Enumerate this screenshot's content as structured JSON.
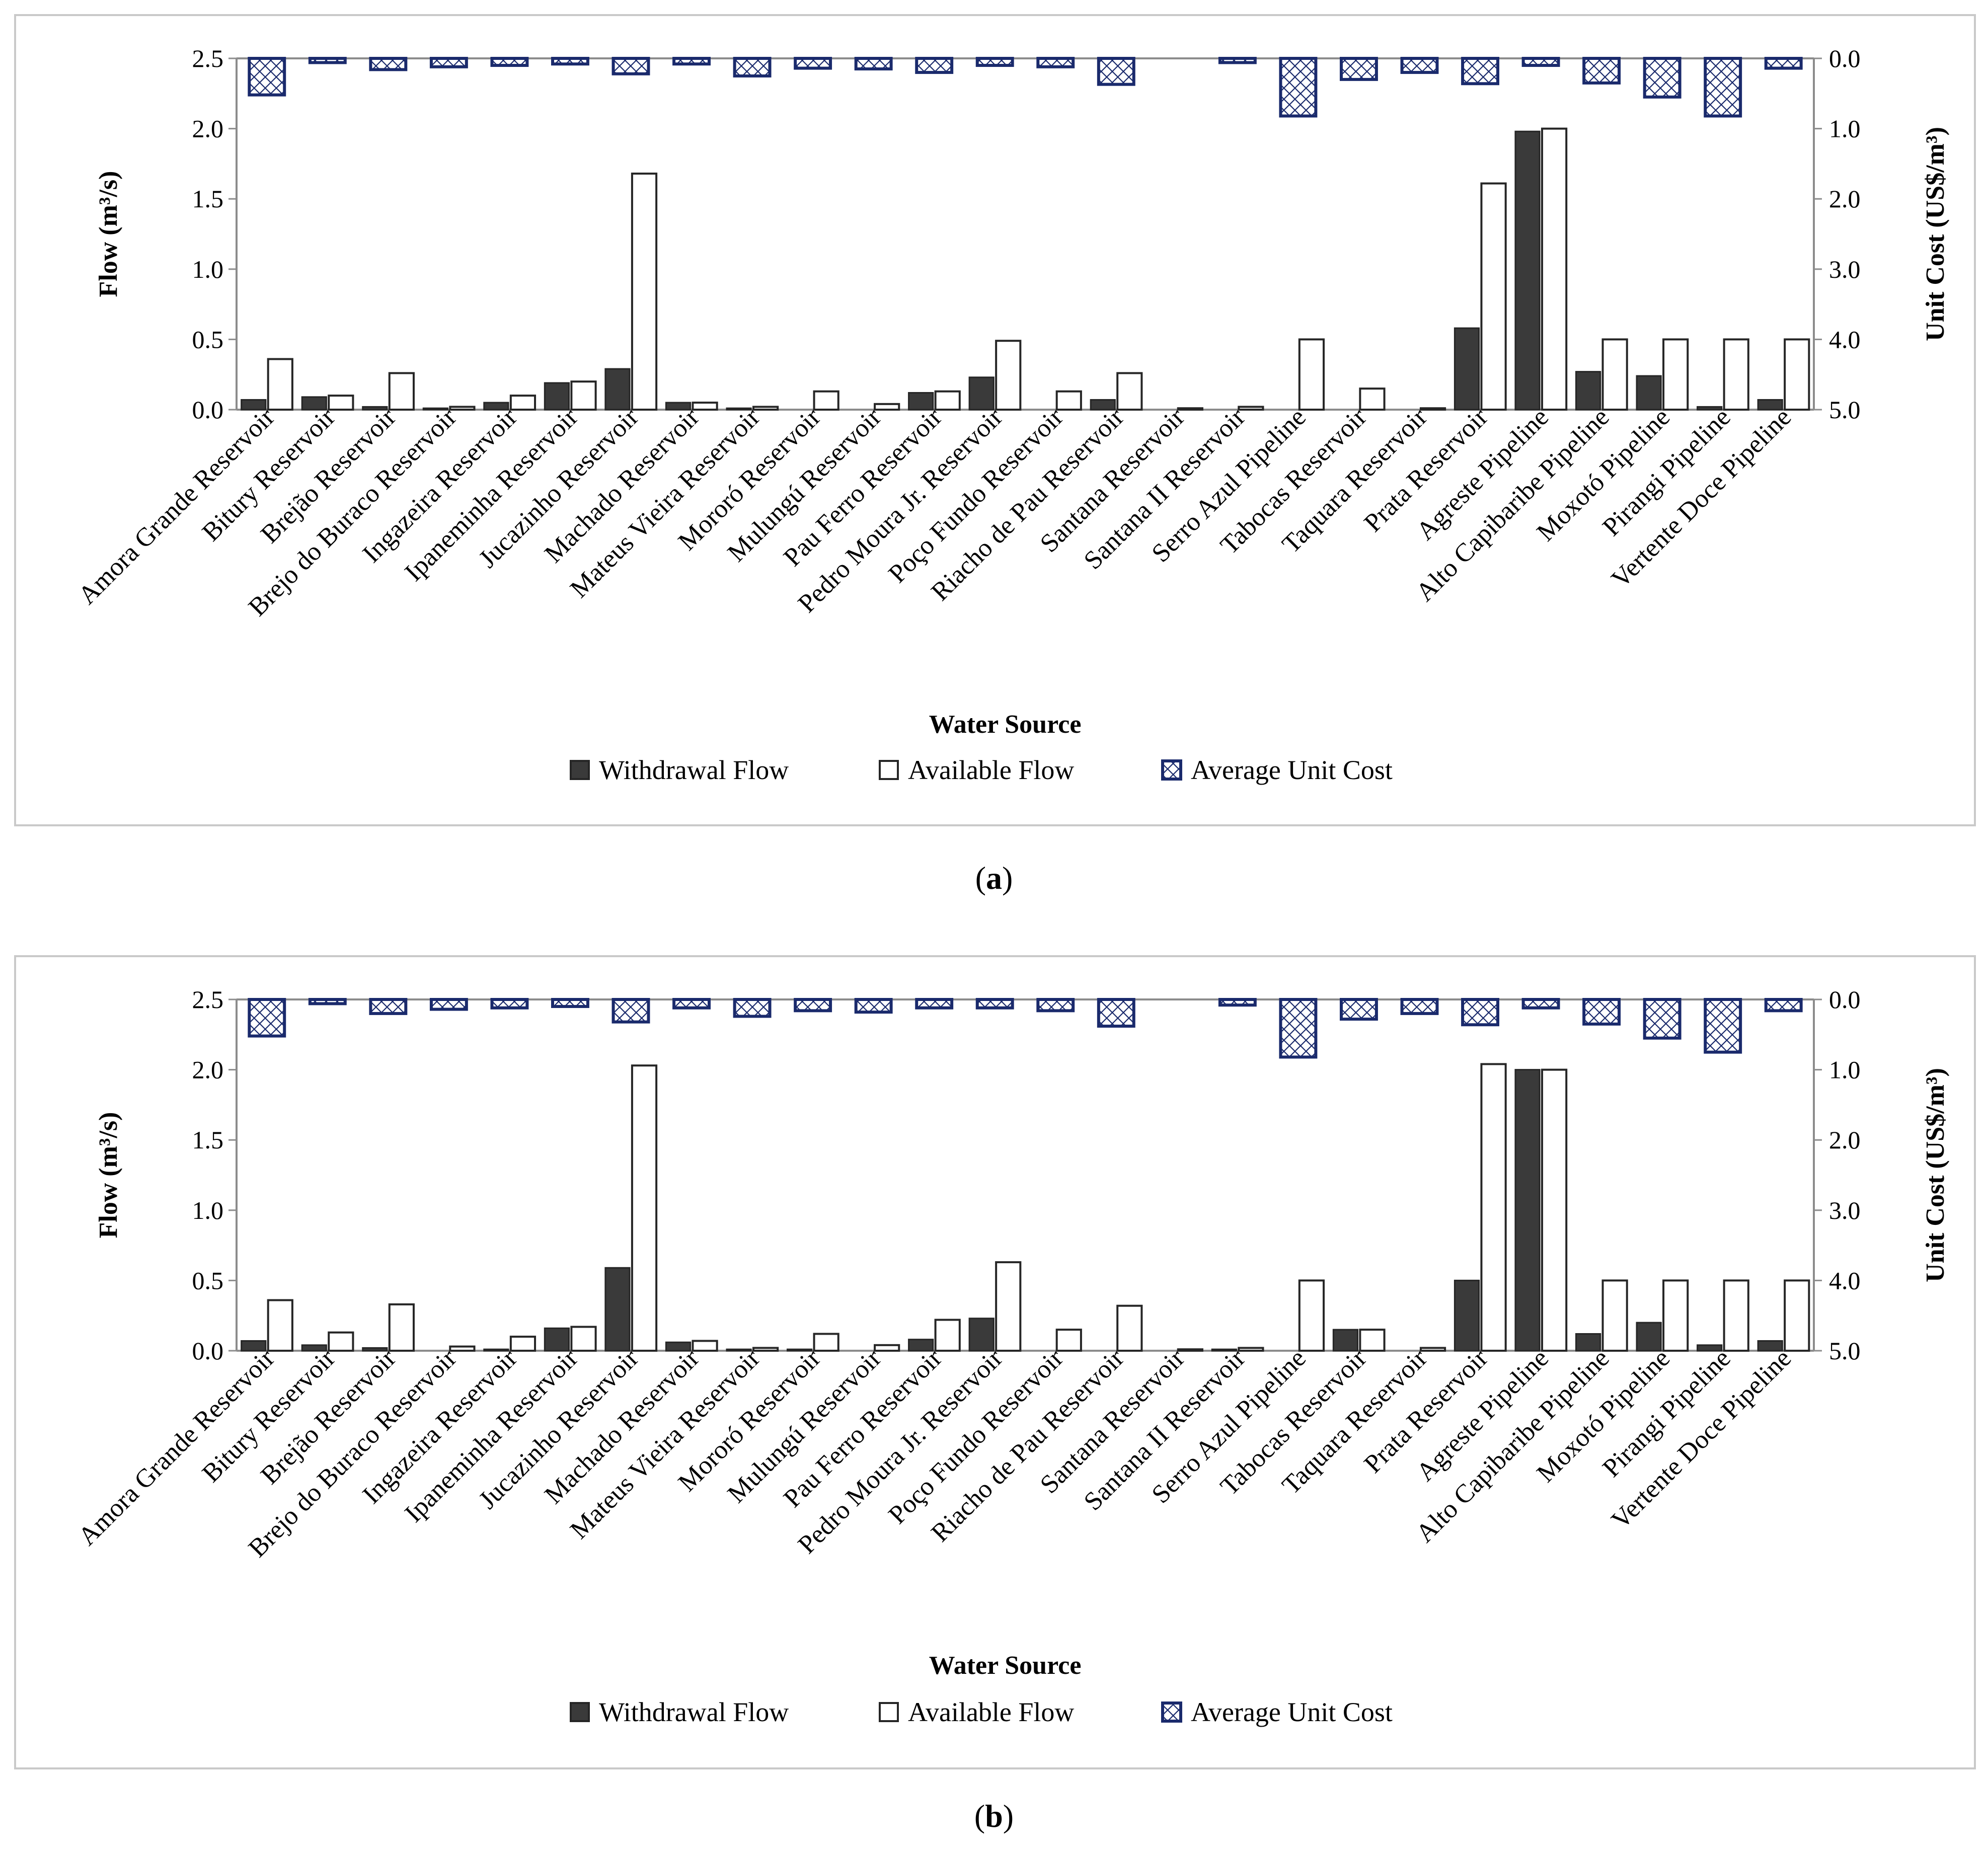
{
  "chart_data": [
    {
      "type": "bar",
      "panel": "a",
      "caption_label": "a",
      "xlabel": "Water Source",
      "ylabel": "Flow (m³/s)",
      "y2label": "Unit Cost (US$/m³)",
      "ylim": [
        0,
        2.5
      ],
      "y2lim": [
        0,
        5
      ],
      "y2_inverted": true,
      "yticks": [
        "0.0",
        "0.5",
        "1.0",
        "1.5",
        "2.0",
        "2.5"
      ],
      "y2ticks": [
        "0.0",
        "1.0",
        "2.0",
        "3.0",
        "4.0",
        "5.0"
      ],
      "legend_position": "bottom-center",
      "categories": [
        "Amora Grande Reservoir",
        "Bitury Reservoir",
        "Brejão Reservoir",
        "Brejo do Buraco Reservoir",
        "Ingazeira Reservoir",
        "Ipaneminha Reservoir",
        "Jucazinho Reservoir",
        "Machado Reservoir",
        "Mateus Vieira Reservoir",
        "Mororó Reservoir",
        "Mulungú Reservoir",
        "Pau Ferro Reservoir",
        "Pedro Moura Jr. Reservoir",
        "Poço Fundo Reservoir",
        "Riacho de Pau Reservoir",
        "Santana Reservoir",
        "Santana II Reservoir",
        "Serro Azul Pipeline",
        "Tabocas Reservoir",
        "Taquara Reservoir",
        "Prata Reservoir",
        "Agreste Pipeline",
        "Alto Capibaribe Pipeline",
        "Moxotó Pipeline",
        "Pirangi Pipeline",
        "Vertente Doce Pipeline"
      ],
      "series": [
        {
          "name": "Withdrawal Flow",
          "axis": "left",
          "color": "#3a3a3a",
          "values": [
            0.07,
            0.09,
            0.02,
            0.01,
            0.05,
            0.19,
            0.29,
            0.05,
            0.01,
            0.0,
            0.0,
            0.12,
            0.23,
            0.0,
            0.07,
            0.0,
            0.0,
            0.0,
            0.0,
            0.0,
            0.58,
            1.98,
            0.27,
            0.24,
            0.02,
            0.07
          ]
        },
        {
          "name": "Available Flow",
          "axis": "left",
          "color": "#ffffff",
          "values": [
            0.36,
            0.1,
            0.26,
            0.02,
            0.1,
            0.2,
            1.68,
            0.05,
            0.02,
            0.13,
            0.04,
            0.13,
            0.49,
            0.13,
            0.26,
            0.01,
            0.02,
            0.5,
            0.15,
            0.01,
            1.61,
            2.0,
            0.5,
            0.5,
            0.5,
            0.5
          ]
        },
        {
          "name": "Average Unit Cost",
          "axis": "right",
          "color": "#1a2a6c",
          "values": [
            0.52,
            0.06,
            0.16,
            0.12,
            0.1,
            0.08,
            0.22,
            0.08,
            0.25,
            0.14,
            0.15,
            0.2,
            0.1,
            0.12,
            0.37,
            0.0,
            0.06,
            0.82,
            0.3,
            0.2,
            0.36,
            0.1,
            0.35,
            0.55,
            0.82,
            0.14
          ]
        }
      ]
    },
    {
      "type": "bar",
      "panel": "b",
      "caption_label": "b",
      "xlabel": "Water Source",
      "ylabel": "Flow (m³/s)",
      "y2label": "Unit Cost (US$/m³)",
      "ylim": [
        0,
        2.5
      ],
      "y2lim": [
        0,
        5
      ],
      "y2_inverted": true,
      "yticks": [
        "0.0",
        "0.5",
        "1.0",
        "1.5",
        "2.0",
        "2.5"
      ],
      "y2ticks": [
        "0.0",
        "1.0",
        "2.0",
        "3.0",
        "4.0",
        "5.0"
      ],
      "legend_position": "bottom-center",
      "categories": [
        "Amora Grande Reservoir",
        "Bitury Reservoir",
        "Brejão Reservoir",
        "Brejo do Buraco Reservoir",
        "Ingazeira Reservoir",
        "Ipaneminha Reservoir",
        "Jucazinho Reservoir",
        "Machado Reservoir",
        "Mateus Vieira Reservoir",
        "Mororó Reservoir",
        "Mulungú Reservoir",
        "Pau Ferro Reservoir",
        "Pedro Moura Jr. Reservoir",
        "Poço Fundo Reservoir",
        "Riacho de Pau Reservoir",
        "Santana Reservoir",
        "Santana II Reservoir",
        "Serro Azul Pipeline",
        "Tabocas Reservoir",
        "Taquara Reservoir",
        "Prata Reservoir",
        "Agreste Pipeline",
        "Alto Capibaribe Pipeline",
        "Moxotó Pipeline",
        "Pirangi Pipeline",
        "Vertente Doce Pipeline"
      ],
      "series": [
        {
          "name": "Withdrawal Flow",
          "axis": "left",
          "color": "#3a3a3a",
          "values": [
            0.07,
            0.04,
            0.02,
            0.0,
            0.01,
            0.16,
            0.59,
            0.06,
            0.01,
            0.01,
            0.0,
            0.08,
            0.23,
            0.0,
            0.0,
            0.0,
            0.01,
            0.0,
            0.15,
            0.0,
            0.5,
            2.0,
            0.12,
            0.2,
            0.04,
            0.07
          ]
        },
        {
          "name": "Available Flow",
          "axis": "left",
          "color": "#ffffff",
          "values": [
            0.36,
            0.13,
            0.33,
            0.03,
            0.1,
            0.17,
            2.03,
            0.07,
            0.02,
            0.12,
            0.04,
            0.22,
            0.63,
            0.15,
            0.32,
            0.01,
            0.02,
            0.5,
            0.15,
            0.02,
            2.04,
            2.0,
            0.5,
            0.5,
            0.5,
            0.5
          ]
        },
        {
          "name": "Average Unit Cost",
          "axis": "right",
          "color": "#1a2a6c",
          "values": [
            0.52,
            0.06,
            0.2,
            0.14,
            0.12,
            0.1,
            0.32,
            0.12,
            0.24,
            0.16,
            0.18,
            0.12,
            0.12,
            0.16,
            0.38,
            0.0,
            0.08,
            0.82,
            0.28,
            0.2,
            0.36,
            0.12,
            0.35,
            0.55,
            0.75,
            0.16
          ]
        }
      ]
    }
  ]
}
